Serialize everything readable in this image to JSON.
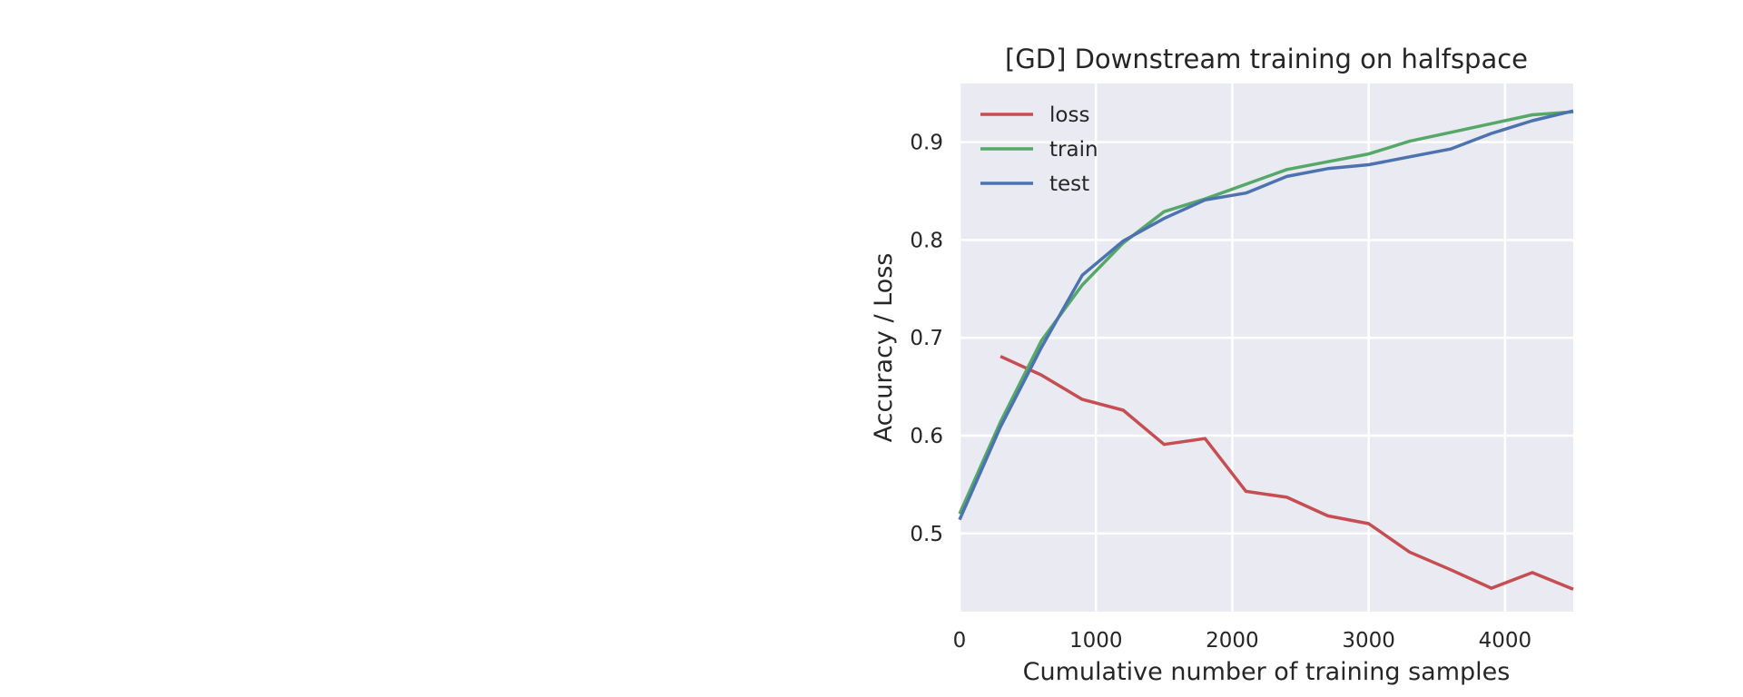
{
  "chart_data": {
    "type": "line",
    "title": "[GD] Downstream training on halfspace",
    "xlabel": "Cumulative number of training samples",
    "ylabel": "Accuracy / Loss",
    "xlim": [
      0,
      4500
    ],
    "ylim": [
      0.42,
      0.96
    ],
    "xticks": [
      0,
      1000,
      2000,
      3000,
      4000
    ],
    "xtick_labels": [
      "0",
      "1000",
      "2000",
      "3000",
      "4000"
    ],
    "yticks": [
      0.5,
      0.6,
      0.7,
      0.8,
      0.9
    ],
    "ytick_labels": [
      "0.5",
      "0.6",
      "0.7",
      "0.8",
      "0.9"
    ],
    "grid": true,
    "legend_position": "upper-left",
    "series": [
      {
        "name": "loss",
        "color": "#c44e52",
        "x": [
          300,
          600,
          900,
          1200,
          1500,
          1800,
          2100,
          2400,
          2700,
          3000,
          3300,
          3600,
          3900,
          4200,
          4500
        ],
        "y": [
          0.681,
          0.662,
          0.637,
          0.626,
          0.591,
          0.597,
          0.543,
          0.537,
          0.518,
          0.51,
          0.481,
          0.463,
          0.444,
          0.46,
          0.443
        ]
      },
      {
        "name": "train",
        "color": "#55a868",
        "x": [
          0,
          300,
          600,
          900,
          1200,
          1500,
          1800,
          2100,
          2400,
          2700,
          3000,
          3300,
          3600,
          3900,
          4200,
          4500
        ],
        "y": [
          0.52,
          0.614,
          0.697,
          0.754,
          0.797,
          0.829,
          0.842,
          0.857,
          0.872,
          0.88,
          0.888,
          0.901,
          0.91,
          0.919,
          0.928,
          0.931
        ]
      },
      {
        "name": "test",
        "color": "#4c72b0",
        "x": [
          0,
          300,
          600,
          900,
          1200,
          1500,
          1800,
          2100,
          2400,
          2700,
          3000,
          3300,
          3600,
          3900,
          4200,
          4500
        ],
        "y": [
          0.514,
          0.609,
          0.69,
          0.764,
          0.799,
          0.822,
          0.841,
          0.848,
          0.865,
          0.873,
          0.877,
          0.885,
          0.893,
          0.909,
          0.922,
          0.932
        ]
      }
    ]
  }
}
